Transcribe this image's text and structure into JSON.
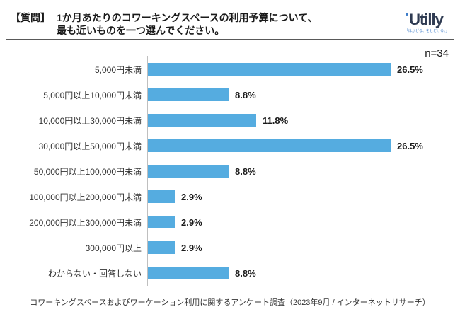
{
  "header": {
    "prefix": "【質問】",
    "line1": "1か月あたりのコワーキングスペースの利用予算について、",
    "line2": "最も近いものを一つ選んでください。",
    "logo": {
      "name": "Utilly",
      "tagline": "「はかどる、をとどける。」"
    }
  },
  "chart_data": {
    "type": "bar",
    "orientation": "horizontal",
    "title": "",
    "xlabel": "",
    "ylabel": "",
    "n": 34,
    "n_label": "n=34",
    "categories": [
      "5,000円未満",
      "5,000円以上10,000円未満",
      "10,000円以上30,000円未満",
      "30,000円以上50,000円未満",
      "50,000円以上100,000円未満",
      "100,000円以上200,000円未満",
      "200,000円以上300,000円未満",
      "300,000円以上",
      "わからない・回答しない"
    ],
    "values": [
      26.5,
      8.8,
      11.8,
      26.5,
      8.8,
      2.9,
      2.9,
      2.9,
      8.8
    ],
    "value_labels": [
      "26.5%",
      "8.8%",
      "11.8%",
      "26.5%",
      "8.8%",
      "2.9%",
      "2.9%",
      "2.9%",
      "8.8%"
    ],
    "xlim": [
      0,
      33
    ],
    "grid": false,
    "legend": false,
    "bar_color": "#55ACE0"
  },
  "footer": {
    "source": "コワーキングスペースおよびワーケーション利用に関するアンケート調査（2023年9月 / インターネットリサーチ）"
  }
}
